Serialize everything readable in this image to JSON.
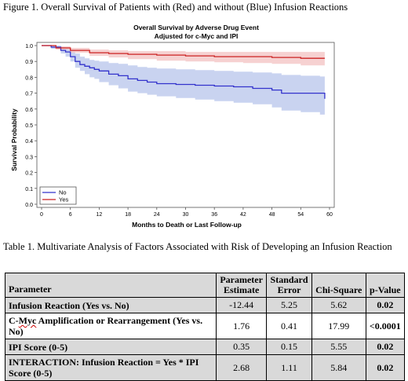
{
  "figure_caption": "Figure 1. Overall Survival of Patients with (Red) and without (Blue) Infusion Reactions",
  "chart_data": {
    "type": "line",
    "title": "Overall Survival by Adverse Drug Event",
    "subtitle": "Adjusted for c-Myc and IPI",
    "xlabel": "Months to Death or Last Follow-up",
    "ylabel": "Survival Probability",
    "xlim": [
      0,
      60
    ],
    "ylim": [
      0,
      1
    ],
    "x_ticks": [
      "0",
      "6",
      "12",
      "18",
      "24",
      "30",
      "36",
      "42",
      "48",
      "54",
      "60"
    ],
    "y_ticks": [
      "0.0",
      "0.1",
      "0.2",
      "0.3",
      "0.4",
      "0.5",
      "0.6",
      "0.7",
      "0.8",
      "0.9",
      "1.0"
    ],
    "legend_position": "bottom-left",
    "grid": false,
    "series": [
      {
        "name": "No",
        "color": "#3333cc",
        "band_color": "#c9d3f0",
        "x": [
          0,
          2,
          4,
          5,
          6,
          7,
          8,
          9,
          10,
          11,
          12,
          14,
          16,
          18,
          20,
          22,
          24,
          28,
          32,
          36,
          40,
          44,
          48,
          50,
          54,
          58,
          59
        ],
        "y": [
          1.0,
          0.99,
          0.97,
          0.96,
          0.93,
          0.9,
          0.88,
          0.87,
          0.86,
          0.85,
          0.84,
          0.82,
          0.81,
          0.79,
          0.78,
          0.77,
          0.76,
          0.755,
          0.75,
          0.745,
          0.74,
          0.73,
          0.72,
          0.7,
          0.7,
          0.7,
          0.665
        ],
        "lower": [
          1.0,
          0.98,
          0.95,
          0.93,
          0.9,
          0.86,
          0.84,
          0.82,
          0.8,
          0.79,
          0.77,
          0.75,
          0.73,
          0.71,
          0.7,
          0.69,
          0.68,
          0.67,
          0.66,
          0.65,
          0.64,
          0.63,
          0.61,
          0.59,
          0.58,
          0.565,
          0.555
        ],
        "upper": [
          1.0,
          1.0,
          0.99,
          0.985,
          0.97,
          0.95,
          0.93,
          0.92,
          0.91,
          0.905,
          0.9,
          0.89,
          0.885,
          0.875,
          0.865,
          0.86,
          0.855,
          0.85,
          0.845,
          0.84,
          0.835,
          0.83,
          0.825,
          0.815,
          0.81,
          0.805,
          0.8
        ]
      },
      {
        "name": "Yes",
        "color": "#cc2222",
        "band_color": "#f4c9c9",
        "x": [
          0,
          3,
          6,
          10,
          14,
          18,
          24,
          30,
          36,
          42,
          48,
          54,
          59
        ],
        "y": [
          1.0,
          0.985,
          0.97,
          0.955,
          0.95,
          0.945,
          0.94,
          0.935,
          0.93,
          0.93,
          0.925,
          0.92,
          0.92
        ],
        "lower": [
          1.0,
          0.975,
          0.955,
          0.935,
          0.925,
          0.915,
          0.905,
          0.9,
          0.895,
          0.89,
          0.885,
          0.875,
          0.87
        ],
        "upper": [
          1.0,
          0.995,
          0.985,
          0.975,
          0.97,
          0.965,
          0.965,
          0.96,
          0.96,
          0.96,
          0.96,
          0.96,
          0.965
        ]
      }
    ]
  },
  "table_caption": "Table 1. Multivariate Analysis of Factors Associated with Risk of Developing an Infusion Reaction",
  "table": {
    "headers": {
      "parameter": "Parameter",
      "estimate_1": "Parameter",
      "estimate_2": "Estimate",
      "se_1": "Standard",
      "se_2": "Error",
      "chisq": "Chi-Square",
      "p": "p-Value"
    },
    "rows": [
      {
        "label_a": "Infusion Reaction (Yes vs. No)",
        "label_b": "",
        "label_c": "",
        "estimate": "-12.44",
        "se": "5.25",
        "chisq": "5.62",
        "p": "0.02"
      },
      {
        "label_a": "C-",
        "label_b": "Myc",
        "label_c": " Amplification or Rearrangement (Yes vs. No)",
        "estimate": "1.76",
        "se": "0.41",
        "chisq": "17.99",
        "p": "<0.0001"
      },
      {
        "label_a": "IPI Score (0-5)",
        "label_b": "",
        "label_c": "",
        "estimate": "0.35",
        "se": "0.15",
        "chisq": "5.55",
        "p": "0.02"
      },
      {
        "label_a": "INTERACTION: Infusion Reaction = Yes * IPI Score (0-5)",
        "label_b": "",
        "label_c": "",
        "estimate": "2.68",
        "se": "1.11",
        "chisq": "5.84",
        "p": "0.02"
      }
    ]
  }
}
